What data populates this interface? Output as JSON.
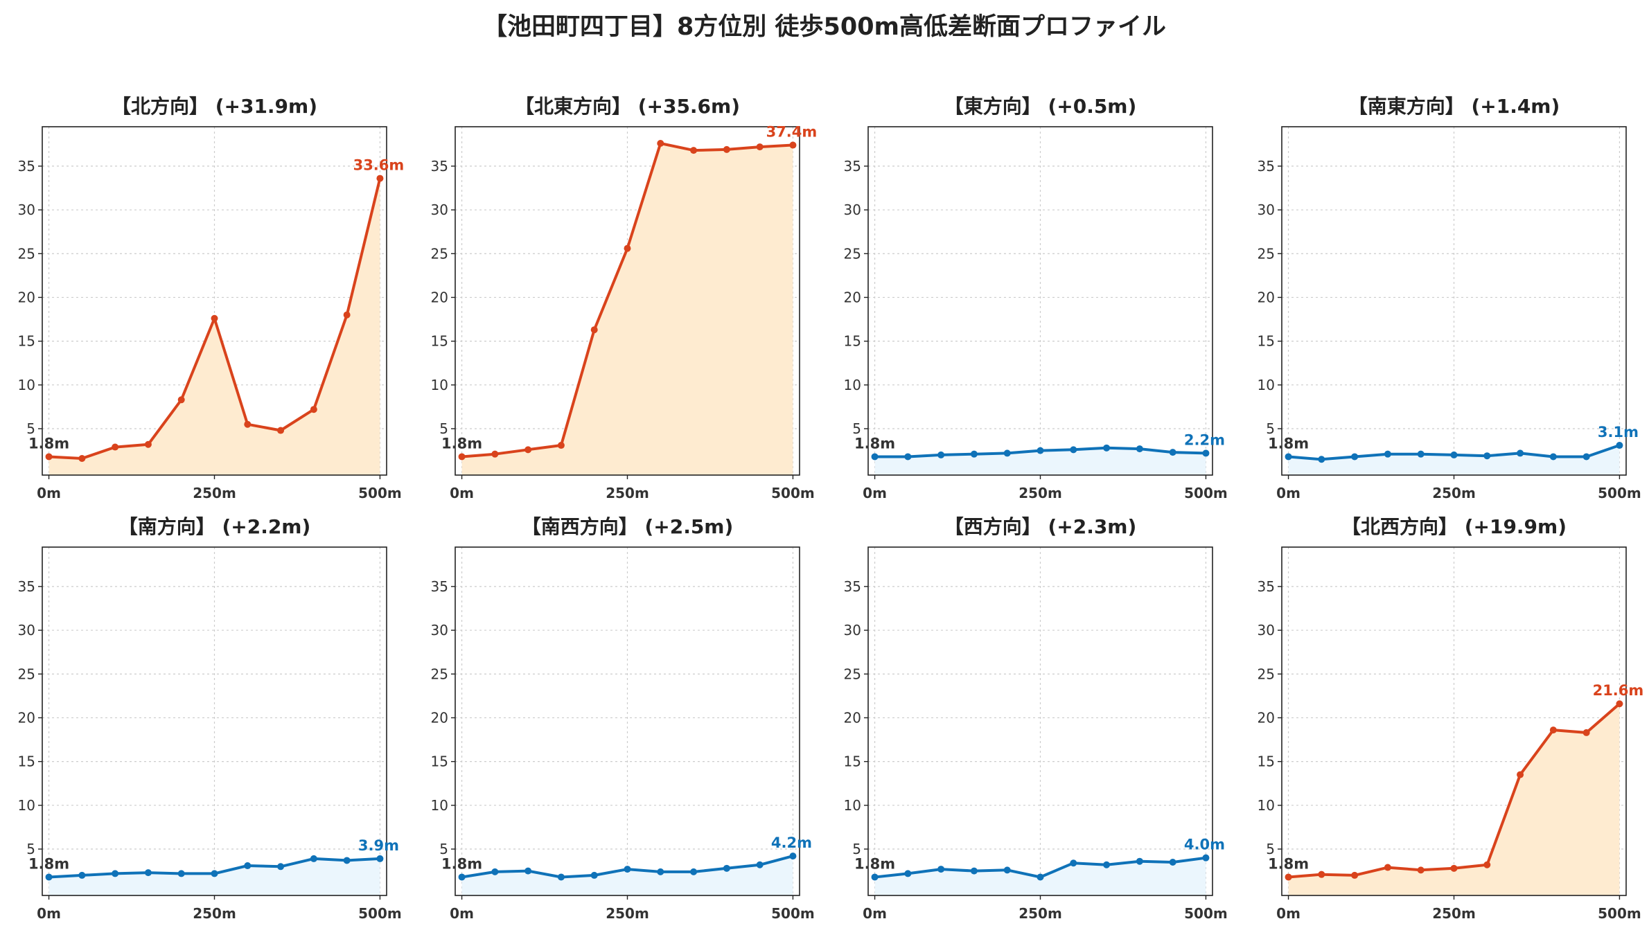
{
  "title": "【池田町四丁目】8方位別 徒歩500m高低差断面プロファイル",
  "colors": {
    "up_line": "#d9431c",
    "up_fill": "#feebd0",
    "flat_line": "#0f72b8",
    "flat_fill": "#ebf6fd",
    "start_label": "#333333",
    "grid": "#cccccc"
  },
  "chart_data": [
    {
      "type": "line",
      "title": "【北方向】 (+31.9m)",
      "trend": "up",
      "x": [
        0,
        50,
        100,
        150,
        200,
        250,
        300,
        350,
        400,
        450,
        500
      ],
      "values": [
        1.8,
        1.6,
        2.9,
        3.2,
        8.3,
        17.6,
        5.5,
        4.8,
        7.2,
        18.0,
        33.6
      ],
      "start_label": "1.8m",
      "end_label": "33.6m",
      "xticks": [
        "0m",
        "250m",
        "500m"
      ],
      "yticks": [
        5,
        10,
        15,
        20,
        25,
        30,
        35
      ],
      "xlim": [
        -10,
        510
      ],
      "ylim": [
        -0.3,
        39.5
      ],
      "grid": true
    },
    {
      "type": "line",
      "title": "【北東方向】 (+35.6m)",
      "trend": "up",
      "x": [
        0,
        50,
        100,
        150,
        200,
        250,
        300,
        350,
        400,
        450,
        500
      ],
      "values": [
        1.8,
        2.1,
        2.6,
        3.1,
        16.3,
        25.6,
        37.6,
        36.8,
        36.9,
        37.2,
        37.4
      ],
      "start_label": "1.8m",
      "end_label": "37.4m",
      "xticks": [
        "0m",
        "250m",
        "500m"
      ],
      "yticks": [
        5,
        10,
        15,
        20,
        25,
        30,
        35
      ],
      "xlim": [
        -10,
        510
      ],
      "ylim": [
        -0.3,
        39.5
      ],
      "grid": true
    },
    {
      "type": "line",
      "title": "【東方向】 (+0.5m)",
      "trend": "flat",
      "x": [
        0,
        50,
        100,
        150,
        200,
        250,
        300,
        350,
        400,
        450,
        500
      ],
      "values": [
        1.8,
        1.8,
        2.0,
        2.1,
        2.2,
        2.5,
        2.6,
        2.8,
        2.7,
        2.3,
        2.2
      ],
      "start_label": "1.8m",
      "end_label": "2.2m",
      "xticks": [
        "0m",
        "250m",
        "500m"
      ],
      "yticks": [
        5,
        10,
        15,
        20,
        25,
        30,
        35
      ],
      "xlim": [
        -10,
        510
      ],
      "ylim": [
        -0.3,
        39.5
      ],
      "grid": true
    },
    {
      "type": "line",
      "title": "【南東方向】 (+1.4m)",
      "trend": "flat",
      "x": [
        0,
        50,
        100,
        150,
        200,
        250,
        300,
        350,
        400,
        450,
        500
      ],
      "values": [
        1.8,
        1.5,
        1.8,
        2.1,
        2.1,
        2.0,
        1.9,
        2.2,
        1.8,
        1.8,
        3.1
      ],
      "start_label": "1.8m",
      "end_label": "3.1m",
      "xticks": [
        "0m",
        "250m",
        "500m"
      ],
      "yticks": [
        5,
        10,
        15,
        20,
        25,
        30,
        35
      ],
      "xlim": [
        -10,
        510
      ],
      "ylim": [
        -0.3,
        39.5
      ],
      "grid": true
    },
    {
      "type": "line",
      "title": "【南方向】 (+2.2m)",
      "trend": "flat",
      "x": [
        0,
        50,
        100,
        150,
        200,
        250,
        300,
        350,
        400,
        450,
        500
      ],
      "values": [
        1.8,
        2.0,
        2.2,
        2.3,
        2.2,
        2.2,
        3.1,
        3.0,
        3.9,
        3.7,
        3.9
      ],
      "start_label": "1.8m",
      "end_label": "3.9m",
      "xticks": [
        "0m",
        "250m",
        "500m"
      ],
      "yticks": [
        5,
        10,
        15,
        20,
        25,
        30,
        35
      ],
      "xlim": [
        -10,
        510
      ],
      "ylim": [
        -0.3,
        39.5
      ],
      "grid": true
    },
    {
      "type": "line",
      "title": "【南西方向】 (+2.5m)",
      "trend": "flat",
      "x": [
        0,
        50,
        100,
        150,
        200,
        250,
        300,
        350,
        400,
        450,
        500
      ],
      "values": [
        1.8,
        2.4,
        2.5,
        1.8,
        2.0,
        2.7,
        2.4,
        2.4,
        2.8,
        3.2,
        4.2
      ],
      "start_label": "1.8m",
      "end_label": "4.2m",
      "xticks": [
        "0m",
        "250m",
        "500m"
      ],
      "yticks": [
        5,
        10,
        15,
        20,
        25,
        30,
        35
      ],
      "xlim": [
        -10,
        510
      ],
      "ylim": [
        -0.3,
        39.5
      ],
      "grid": true
    },
    {
      "type": "line",
      "title": "【西方向】 (+2.3m)",
      "trend": "flat",
      "x": [
        0,
        50,
        100,
        150,
        200,
        250,
        300,
        350,
        400,
        450,
        500
      ],
      "values": [
        1.8,
        2.2,
        2.7,
        2.5,
        2.6,
        1.8,
        3.4,
        3.2,
        3.6,
        3.5,
        4.0
      ],
      "start_label": "1.8m",
      "end_label": "4.0m",
      "xticks": [
        "0m",
        "250m",
        "500m"
      ],
      "yticks": [
        5,
        10,
        15,
        20,
        25,
        30,
        35
      ],
      "xlim": [
        -10,
        510
      ],
      "ylim": [
        -0.3,
        39.5
      ],
      "grid": true
    },
    {
      "type": "line",
      "title": "【北西方向】 (+19.9m)",
      "trend": "up",
      "x": [
        0,
        50,
        100,
        150,
        200,
        250,
        300,
        350,
        400,
        450,
        500
      ],
      "values": [
        1.8,
        2.1,
        2.0,
        2.9,
        2.6,
        2.8,
        3.2,
        13.5,
        18.6,
        18.3,
        21.6
      ],
      "start_label": "1.8m",
      "end_label": "21.6m",
      "xticks": [
        "0m",
        "250m",
        "500m"
      ],
      "yticks": [
        5,
        10,
        15,
        20,
        25,
        30,
        35
      ],
      "xlim": [
        -10,
        510
      ],
      "ylim": [
        -0.3,
        39.5
      ],
      "grid": true
    }
  ]
}
